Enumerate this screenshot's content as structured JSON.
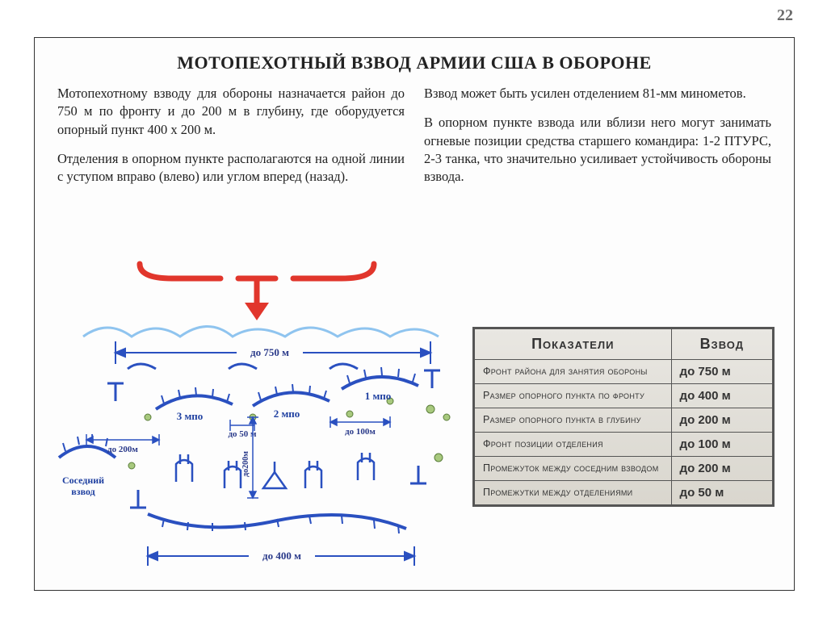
{
  "page_number": "22",
  "title": "МОТОПЕХОТНЫЙ ВЗВОД АРМИИ США В ОБОРОНЕ",
  "left_col": {
    "p1": "Мотопехотному взводу для обороны назначается район до 750 м по фронту и до 200 м в глубину, где оборудуется опорный пункт 400 х 200 м.",
    "p2": "Отделения в опорном пункте располагаются на одной линии с уступом вправо (влево) или углом вперед (назад)."
  },
  "right_col": {
    "p1": "Взвод может быть усилен отделением 81-мм минометов.",
    "p2": "В опорном пункте взвода или вблизи него могут занимать огневые позиции средства старшего командира: 1-2 ПТУРС, 2-3 танка, что значительно усиливает устойчивость обороны взвода."
  },
  "diagram": {
    "colors": {
      "blue": "#2a50c0",
      "lightblue": "#8fc4ef",
      "red": "#e1362c",
      "green": "#a8c97e",
      "darkgreen": "#5a7d3a"
    },
    "top_dim": "до 750 м",
    "dims": {
      "d200": "до 200м",
      "d50": "до 50 м",
      "d100": "до 100м",
      "d200v": "до200м",
      "d400": "до 400 м"
    },
    "units": {
      "u1": "1 мпо",
      "u2": "2 мпо",
      "u3": "3 мпо"
    },
    "neighbor": "Соседний взвод"
  },
  "table": {
    "head1": "Показатели",
    "head2": "Взвод",
    "rows": [
      {
        "label": "Фронт района для занятия обороны",
        "value": "до 750 м"
      },
      {
        "label": "Размер опорного пункта по фронту",
        "value": "до 400 м"
      },
      {
        "label": "Размер опорного пункта в глубину",
        "value": "до 200 м"
      },
      {
        "label": "Фронт позиции отделения",
        "value": "до 100 м"
      },
      {
        "label": "Промежуток между соседним взводом",
        "value": "до 200 м"
      },
      {
        "label": "Промежутки между отделениями",
        "value": "до 50 м"
      }
    ]
  }
}
